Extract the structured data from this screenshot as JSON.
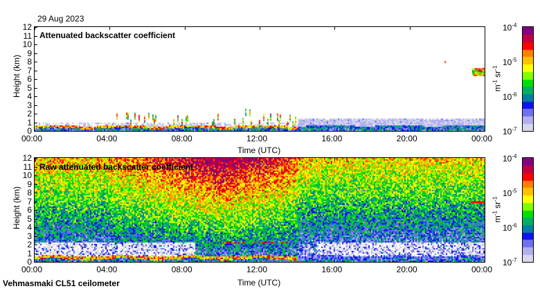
{
  "date": "29 Aug 2023",
  "footer": "Vehmasmaki CL51 ceilometer",
  "chart_data": [
    {
      "type": "heatmap",
      "title": "Attenuated backscatter coefficient",
      "xlabel": "Time (UTC)",
      "ylabel": "Height (km)",
      "xticks": [
        "00:00",
        "04:00",
        "08:00",
        "12:00",
        "16:00",
        "20:00",
        "00:00"
      ],
      "yticks": [
        "0",
        "1",
        "2",
        "3",
        "4",
        "5",
        "6",
        "7",
        "8",
        "9",
        "10",
        "11",
        "12"
      ],
      "ylim": [
        0,
        12
      ],
      "xlim_hours": [
        0,
        24
      ],
      "colorbar": {
        "label": "m-1 sr-1",
        "scale": "log",
        "range": [
          1e-07,
          0.0001
        ],
        "ticks": [
          "10-7",
          "10-6",
          "10-5",
          "10-4"
        ]
      },
      "features": [
        {
          "desc": "boundary layer",
          "time_hours": [
            0,
            24
          ],
          "height_km": [
            0,
            0.8
          ]
        },
        {
          "desc": "clouds",
          "time_hours": [
            4.3,
            14
          ],
          "height_km": [
            1,
            3
          ]
        },
        {
          "desc": "cloud",
          "time_hours": [
            23.3,
            24
          ],
          "height_km": [
            6.5,
            7.3
          ]
        }
      ]
    },
    {
      "type": "heatmap",
      "title": "Raw attenuated backscatter coefficient",
      "xlabel": "Time (UTC)",
      "ylabel": "Height (km)",
      "xticks": [
        "00:00",
        "04:00",
        "08:00",
        "12:00",
        "16:00",
        "20:00",
        "00:00"
      ],
      "yticks": [
        "0",
        "1",
        "2",
        "3",
        "4",
        "5",
        "6",
        "7",
        "8",
        "9",
        "10",
        "11",
        "12"
      ],
      "ylim": [
        0,
        12
      ],
      "xlim_hours": [
        0,
        24
      ],
      "colorbar": {
        "label": "m-1 sr-1",
        "scale": "log",
        "range": [
          1e-07,
          0.0001
        ],
        "ticks": [
          "10-7",
          "10-6",
          "10-5",
          "10-4"
        ]
      }
    }
  ],
  "colorbar_label_m": "m",
  "colorbar_label_sr": "sr",
  "exp_m1": "-1",
  "colors": [
    "#d8d8ec",
    "#b0b0f0",
    "#7070f0",
    "#1010f0",
    "#0080a0",
    "#00b060",
    "#00e000",
    "#80ff00",
    "#ffff00",
    "#ffc000",
    "#ff8000",
    "#ff0000",
    "#c00040",
    "#800080"
  ]
}
